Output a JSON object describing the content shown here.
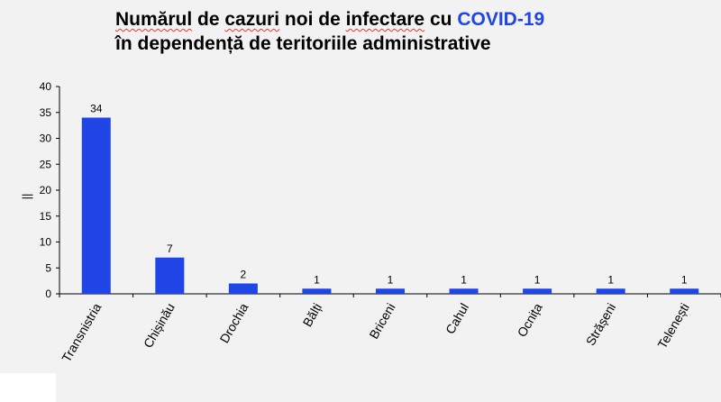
{
  "title": {
    "line1_parts": [
      "Numărul",
      " de ",
      "cazuri",
      " noi de ",
      "infectare",
      " cu ",
      "COVID-19"
    ],
    "line1_squiggle": [
      true,
      false,
      true,
      false,
      true,
      false,
      false
    ],
    "line2": "în dependență de teritoriile administrative",
    "accent_color": "#1f45e6"
  },
  "chart_data": {
    "type": "bar",
    "categories": [
      "Transnistria",
      "Chișinău",
      "Drochia",
      "Bălți",
      "Briceni",
      "Cahul",
      "Ocnița",
      "Strășeni",
      "Telenești"
    ],
    "values": [
      34,
      7,
      2,
      1,
      1,
      1,
      1,
      1,
      1
    ],
    "data_labels": [
      "34",
      "7",
      "2",
      "1",
      "1",
      "1",
      "1",
      "1",
      "1"
    ],
    "ylim": [
      0,
      40
    ],
    "yticks": [
      0,
      5,
      10,
      15,
      20,
      25,
      30,
      35,
      40
    ],
    "ylabel": "||",
    "grid": false,
    "bar_color": "#1f45e6"
  }
}
